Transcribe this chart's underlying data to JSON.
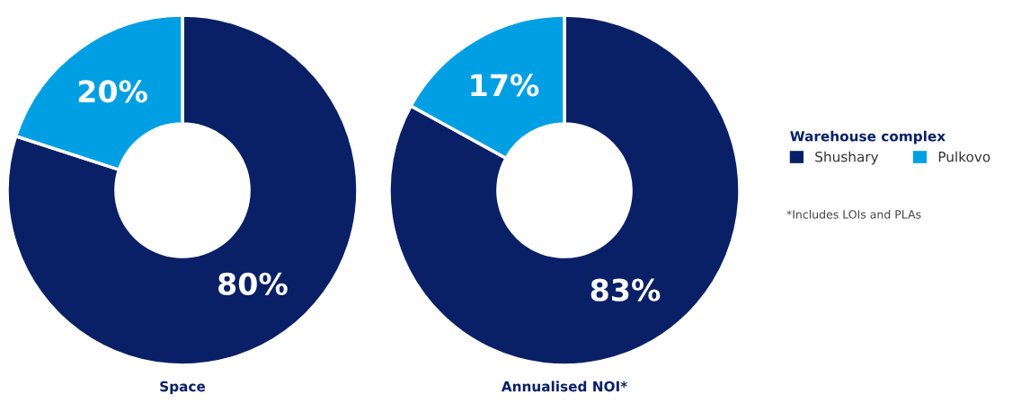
{
  "chart_data": [
    {
      "type": "donut",
      "title": "Space",
      "categories": [
        "Shushary",
        "Pulkovo"
      ],
      "values": [
        80,
        20
      ],
      "colors": [
        "#0a2066",
        "#009fe3"
      ],
      "value_labels": [
        "80%",
        "20%"
      ],
      "legend": "right",
      "legend_title": "Warehouse complex"
    },
    {
      "type": "donut",
      "title": "Annualised NOI*",
      "categories": [
        null,
        null
      ],
      "values": [
        83,
        17
      ],
      "colors": [
        "#0a2066",
        "#009fe3"
      ],
      "value_labels": [
        "83%",
        "17%"
      ],
      "annotations": [
        "*Includes LOIs and PLAs"
      ]
    }
  ]
}
